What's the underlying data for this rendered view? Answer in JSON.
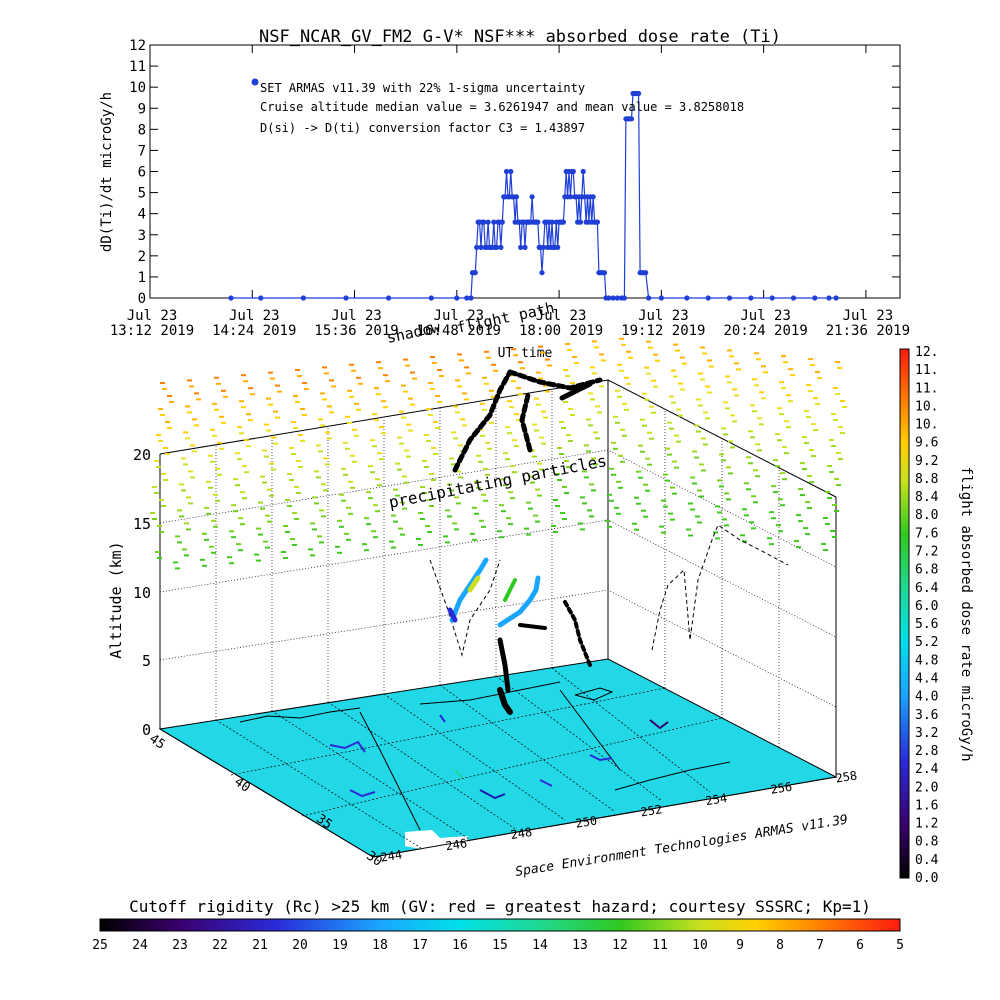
{
  "chart_data": [
    {
      "type": "line",
      "title": "NSF_NCAR_GV_FM2 G-V* NSF*** absorbed dose rate (Ti)",
      "xlabel": "UT time",
      "ylabel": "dD(Ti)/dt microGy/h",
      "ylim": [
        0,
        12
      ],
      "yticks": [
        "0",
        "1",
        "2",
        "3",
        "4",
        "5",
        "6",
        "7",
        "8",
        "9",
        "10",
        "11",
        "12"
      ],
      "xticks": [
        {
          "top": "Jul 23",
          "bottom": "13:12 2019"
        },
        {
          "top": "Jul 23",
          "bottom": "14:24 2019"
        },
        {
          "top": "Jul 23",
          "bottom": "15:36 2019"
        },
        {
          "top": "Jul 23",
          "bottom": "16:48 2019"
        },
        {
          "top": "Jul 23",
          "bottom": "18:00 2019"
        },
        {
          "top": "Jul 23",
          "bottom": "19:12 2019"
        },
        {
          "top": "Jul 23",
          "bottom": "20:24 2019"
        },
        {
          "top": "Jul 23",
          "bottom": "21:36 2019"
        }
      ],
      "xlim": [
        "2019-07-23 13:12",
        "2019-07-23 22:00"
      ],
      "annotations": [
        "SET ARMAS v11.39 with 22% 1-sigma uncertainty",
        "Cruise altitude median value = 3.6261947 and mean value = 3.8258018",
        "D(si) -> D(ti) conversion factor C3 = 1.43897"
      ],
      "series": [
        {
          "color": "#1f3fd6",
          "points": [
            [
              "2019-07-23 14:09",
              0
            ],
            [
              "2019-07-23 14:30",
              0
            ],
            [
              "2019-07-23 15:00",
              0
            ],
            [
              "2019-07-23 15:30",
              0
            ],
            [
              "2019-07-23 16:00",
              0
            ],
            [
              "2019-07-23 16:30",
              0
            ],
            [
              "2019-07-23 16:48",
              0
            ],
            [
              "2019-07-23 16:55",
              0
            ],
            [
              "2019-07-23 16:58",
              0
            ],
            [
              "2019-07-23 16:59",
              1.2
            ],
            [
              "2019-07-23 17:00",
              1.2
            ],
            [
              "2019-07-23 17:01",
              1.2
            ],
            [
              "2019-07-23 17:02",
              2.4
            ],
            [
              "2019-07-23 17:03",
              3.6
            ],
            [
              "2019-07-23 17:04",
              3.6
            ],
            [
              "2019-07-23 17:05",
              2.4
            ],
            [
              "2019-07-23 17:06",
              3.6
            ],
            [
              "2019-07-23 17:07",
              3.6
            ],
            [
              "2019-07-23 17:08",
              2.4
            ],
            [
              "2019-07-23 17:09",
              2.4
            ],
            [
              "2019-07-23 17:10",
              3.6
            ],
            [
              "2019-07-23 17:11",
              2.4
            ],
            [
              "2019-07-23 17:12",
              2.4
            ],
            [
              "2019-07-23 17:13",
              2.4
            ],
            [
              "2019-07-23 17:14",
              3.6
            ],
            [
              "2019-07-23 17:15",
              2.4
            ],
            [
              "2019-07-23 17:16",
              2.4
            ],
            [
              "2019-07-23 17:17",
              3.6
            ],
            [
              "2019-07-23 17:18",
              3.6
            ],
            [
              "2019-07-23 17:19",
              2.4
            ],
            [
              "2019-07-23 17:20",
              3.6
            ],
            [
              "2019-07-23 17:21",
              4.8
            ],
            [
              "2019-07-23 17:22",
              4.8
            ],
            [
              "2019-07-23 17:23",
              6.0
            ],
            [
              "2019-07-23 17:24",
              4.8
            ],
            [
              "2019-07-23 17:25",
              4.8
            ],
            [
              "2019-07-23 17:26",
              6.0
            ],
            [
              "2019-07-23 17:27",
              4.8
            ],
            [
              "2019-07-23 17:28",
              4.8
            ],
            [
              "2019-07-23 17:29",
              3.6
            ],
            [
              "2019-07-23 17:30",
              4.8
            ],
            [
              "2019-07-23 17:31",
              3.6
            ],
            [
              "2019-07-23 17:32",
              3.6
            ],
            [
              "2019-07-23 17:33",
              2.4
            ],
            [
              "2019-07-23 17:34",
              3.6
            ],
            [
              "2019-07-23 17:35",
              3.6
            ],
            [
              "2019-07-23 17:36",
              2.4
            ],
            [
              "2019-07-23 17:37",
              3.6
            ],
            [
              "2019-07-23 17:38",
              3.6
            ],
            [
              "2019-07-23 17:39",
              3.6
            ],
            [
              "2019-07-23 17:40",
              3.6
            ],
            [
              "2019-07-23 17:41",
              4.8
            ],
            [
              "2019-07-23 17:42",
              3.6
            ],
            [
              "2019-07-23 17:43",
              3.6
            ],
            [
              "2019-07-23 17:44",
              3.6
            ],
            [
              "2019-07-23 17:45",
              3.6
            ],
            [
              "2019-07-23 17:46",
              2.4
            ],
            [
              "2019-07-23 17:47",
              2.4
            ],
            [
              "2019-07-23 17:48",
              1.2
            ],
            [
              "2019-07-23 17:49",
              2.4
            ],
            [
              "2019-07-23 17:50",
              3.6
            ],
            [
              "2019-07-23 17:51",
              3.6
            ],
            [
              "2019-07-23 17:52",
              2.4
            ],
            [
              "2019-07-23 17:53",
              3.6
            ],
            [
              "2019-07-23 17:54",
              2.4
            ],
            [
              "2019-07-23 17:55",
              3.6
            ],
            [
              "2019-07-23 17:56",
              2.4
            ],
            [
              "2019-07-23 17:57",
              2.4
            ],
            [
              "2019-07-23 17:58",
              3.6
            ],
            [
              "2019-07-23 17:59",
              2.4
            ],
            [
              "2019-07-23 18:00",
              3.6
            ],
            [
              "2019-07-23 18:01",
              3.6
            ],
            [
              "2019-07-23 18:02",
              3.6
            ],
            [
              "2019-07-23 18:03",
              3.6
            ],
            [
              "2019-07-23 18:04",
              4.8
            ],
            [
              "2019-07-23 18:05",
              6.0
            ],
            [
              "2019-07-23 18:06",
              4.8
            ],
            [
              "2019-07-23 18:07",
              6.0
            ],
            [
              "2019-07-23 18:08",
              4.8
            ],
            [
              "2019-07-23 18:09",
              6.0
            ],
            [
              "2019-07-23 18:10",
              6.0
            ],
            [
              "2019-07-23 18:11",
              4.8
            ],
            [
              "2019-07-23 18:12",
              4.8
            ],
            [
              "2019-07-23 18:13",
              3.6
            ],
            [
              "2019-07-23 18:14",
              4.8
            ],
            [
              "2019-07-23 18:15",
              3.6
            ],
            [
              "2019-07-23 18:16",
              4.8
            ],
            [
              "2019-07-23 18:17",
              6.0
            ],
            [
              "2019-07-23 18:18",
              4.8
            ],
            [
              "2019-07-23 18:19",
              3.6
            ],
            [
              "2019-07-23 18:20",
              4.8
            ],
            [
              "2019-07-23 18:21",
              3.6
            ],
            [
              "2019-07-23 18:22",
              4.8
            ],
            [
              "2019-07-23 18:23",
              3.6
            ],
            [
              "2019-07-23 18:24",
              4.8
            ],
            [
              "2019-07-23 18:25",
              3.6
            ],
            [
              "2019-07-23 18:26",
              3.6
            ],
            [
              "2019-07-23 18:27",
              3.6
            ],
            [
              "2019-07-23 18:28",
              1.2
            ],
            [
              "2019-07-23 18:29",
              1.2
            ],
            [
              "2019-07-23 18:30",
              1.2
            ],
            [
              "2019-07-23 18:31",
              1.2
            ],
            [
              "2019-07-23 18:32",
              1.2
            ],
            [
              "2019-07-23 18:33",
              0
            ],
            [
              "2019-07-23 18:35",
              0
            ],
            [
              "2019-07-23 18:38",
              0
            ],
            [
              "2019-07-23 18:41",
              0
            ],
            [
              "2019-07-23 18:44",
              0
            ],
            [
              "2019-07-23 18:46",
              0
            ],
            [
              "2019-07-23 18:47",
              8.5
            ],
            [
              "2019-07-23 18:48",
              8.5
            ],
            [
              "2019-07-23 18:49",
              8.5
            ],
            [
              "2019-07-23 18:50",
              8.5
            ],
            [
              "2019-07-23 18:51",
              8.5
            ],
            [
              "2019-07-23 18:52",
              9.7
            ],
            [
              "2019-07-23 18:53",
              9.7
            ],
            [
              "2019-07-23 18:54",
              9.7
            ],
            [
              "2019-07-23 18:55",
              9.7
            ],
            [
              "2019-07-23 18:56",
              9.7
            ],
            [
              "2019-07-23 18:57",
              1.2
            ],
            [
              "2019-07-23 18:58",
              1.2
            ],
            [
              "2019-07-23 18:59",
              1.2
            ],
            [
              "2019-07-23 19:00",
              1.2
            ],
            [
              "2019-07-23 19:01",
              1.2
            ],
            [
              "2019-07-23 19:03",
              0
            ],
            [
              "2019-07-23 19:12",
              0
            ],
            [
              "2019-07-23 19:30",
              0
            ],
            [
              "2019-07-23 19:45",
              0
            ],
            [
              "2019-07-23 20:00",
              0
            ],
            [
              "2019-07-23 20:15",
              0
            ],
            [
              "2019-07-23 20:30",
              0
            ],
            [
              "2019-07-23 20:45",
              0
            ],
            [
              "2019-07-23 21:00",
              0
            ],
            [
              "2019-07-23 21:10",
              0
            ],
            [
              "2019-07-23 21:15",
              0
            ]
          ]
        }
      ]
    },
    {
      "type": "scatter",
      "xlabel": "",
      "ylabel": "",
      "zlabel": "Altitude (km)",
      "zticks": [
        "0",
        "5",
        "10",
        "15",
        "20"
      ],
      "lat_ticks": [
        "30",
        "35",
        "40",
        "45"
      ],
      "lon_ticks": [
        "244",
        "246",
        "248",
        "250",
        "252",
        "254",
        "256",
        "258"
      ],
      "annotations": [
        "shadow",
        "flight path",
        "precipitating particles"
      ],
      "credit": "Space Environment Technologies ARMAS v11.39"
    },
    {
      "type": "heatmap",
      "title": "Cutoff rigidity (Rc) >25 km (GV: red = greatest hazard; courtesy SSSRC; Kp=1)",
      "ticks": [
        "25",
        "24",
        "23",
        "22",
        "21",
        "20",
        "19",
        "18",
        "17",
        "16",
        "15",
        "14",
        "13",
        "12",
        "11",
        "10",
        "9",
        "8",
        "7",
        "6",
        "5"
      ]
    },
    {
      "type": "heatmap",
      "title": "flight absorbed dose rate microGy/h",
      "ticks": [
        "0.0",
        "0.4",
        "0.8",
        "1.2",
        "1.6",
        "2.0",
        "2.4",
        "2.8",
        "3.2",
        "3.6",
        "4.0",
        "4.4",
        "4.8",
        "5.2",
        "5.6",
        "6.0",
        "6.4",
        "6.8",
        "7.2",
        "7.6",
        "8.0",
        "8.4",
        "8.8",
        "9.2",
        "9.6",
        "10.",
        "10.",
        "11.",
        "11.",
        "12."
      ]
    }
  ]
}
